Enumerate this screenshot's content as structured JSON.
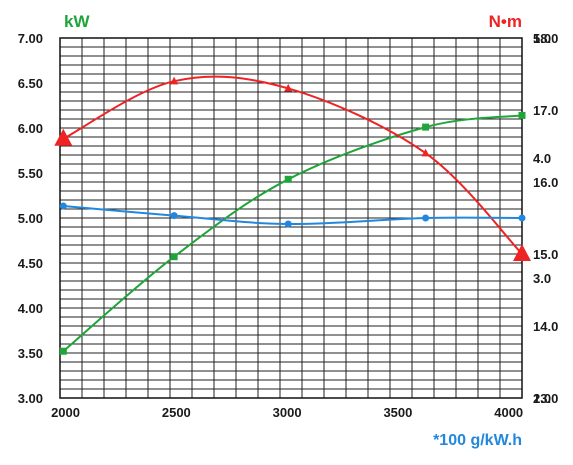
{
  "chart_data": {
    "type": "line",
    "x_ticks": [
      2000,
      2500,
      3000,
      3500,
      4000
    ],
    "xlim": [
      1975,
      4060
    ],
    "left_axis": {
      "unit_label": "kW",
      "ticks": [
        "3.00",
        "3.50",
        "4.00",
        "4.50",
        "5.00",
        "5.50",
        "6.00",
        "6.50",
        "7.00"
      ],
      "ylim": [
        3.0,
        7.0
      ]
    },
    "right_axis_torque": {
      "unit_label": "N•m",
      "ticks": [
        "13.0",
        "14.0",
        "15.0",
        "16.0",
        "17.0",
        "18.0"
      ],
      "ylim": [
        13.0,
        18.0
      ]
    },
    "right_axis_fuel": {
      "unit_label": "*100 g/kW.h",
      "ticks": [
        "2.0",
        "3.0",
        "4.0",
        "5.0"
      ],
      "ylim": [
        2.0,
        5.0
      ]
    },
    "grid": true,
    "series": [
      {
        "axis": "left_axis",
        "color": "#1fa53a",
        "marker": "square",
        "x": [
          1990,
          2490,
          3005,
          3625,
          4060
        ],
        "y": [
          3.52,
          4.57,
          5.43,
          6.01,
          6.14
        ]
      },
      {
        "axis": "right_axis_torque",
        "color": "#ee2424",
        "marker": "triangle",
        "x": [
          1990,
          2490,
          3005,
          3625,
          4060
        ],
        "y": [
          16.6,
          17.4,
          17.3,
          16.4,
          15.0
        ]
      },
      {
        "axis": "right_axis_fuel",
        "color": "#2288dd",
        "marker": "circle",
        "x": [
          1990,
          2490,
          3005,
          3625,
          4060
        ],
        "y": [
          3.6,
          3.52,
          3.45,
          3.5,
          3.5
        ]
      }
    ]
  }
}
